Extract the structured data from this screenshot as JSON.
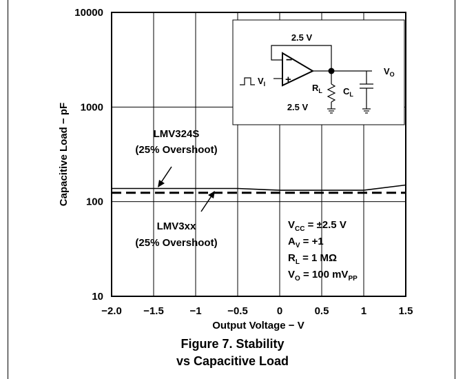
{
  "chart_data": {
    "type": "line",
    "xlabel": "Output Voltage − V",
    "ylabel": "Capacitive Load − pF",
    "xlim": [
      -2.0,
      1.5
    ],
    "ylim": [
      10,
      10000
    ],
    "yscale": "log",
    "grid": true,
    "x_tick_labels": [
      "−2.0",
      "−1.5",
      "−1",
      "−0.5",
      "0",
      "0.5",
      "1",
      "1.5"
    ],
    "y_tick_labels": [
      "10",
      "100",
      "1000",
      "10000"
    ],
    "series": [
      {
        "name": "LMV324S",
        "name_sub": "(25% Overshoot)",
        "style": "solid",
        "x": [
          -2.0,
          -1.5,
          -1.0,
          -0.5,
          0.0,
          0.5,
          1.0,
          1.5
        ],
        "y": [
          138,
          138,
          138,
          138,
          132,
          132,
          132,
          150
        ]
      },
      {
        "name": "LMV3xx",
        "name_sub": "(25% Overshoot)",
        "style": "dashed",
        "x": [
          -2.0,
          -1.5,
          -1.0,
          -0.5,
          0.0,
          0.5,
          1.0,
          1.5
        ],
        "y": [
          124,
          124,
          124,
          124,
          124,
          124,
          124,
          124
        ]
      }
    ],
    "conditions": [
      {
        "main": "V",
        "sub": "CC",
        "rest": " = ±2.5 V",
        "rest_sub": ""
      },
      {
        "main": "A",
        "sub": "V",
        "rest": " = +1",
        "rest_sub": ""
      },
      {
        "main": "R",
        "sub": "L",
        "rest": " = 1 MΩ",
        "rest_sub": ""
      },
      {
        "main": "V",
        "sub": "O",
        "rest": " = 100 mV",
        "rest_sub": "PP"
      }
    ]
  },
  "circuit": {
    "supply_top": "2.5 V",
    "supply_bottom": "2.5 V",
    "input_label": "V",
    "input_sub": "I",
    "output_label": "V",
    "output_sub": "O",
    "rl_label": "R",
    "rl_sub": "L",
    "cl_label": "C",
    "cl_sub": "L",
    "minus": "−",
    "plus": "+"
  },
  "caption": {
    "line1": "Figure 7. Stability",
    "line2": "vs Capacitive Load"
  }
}
